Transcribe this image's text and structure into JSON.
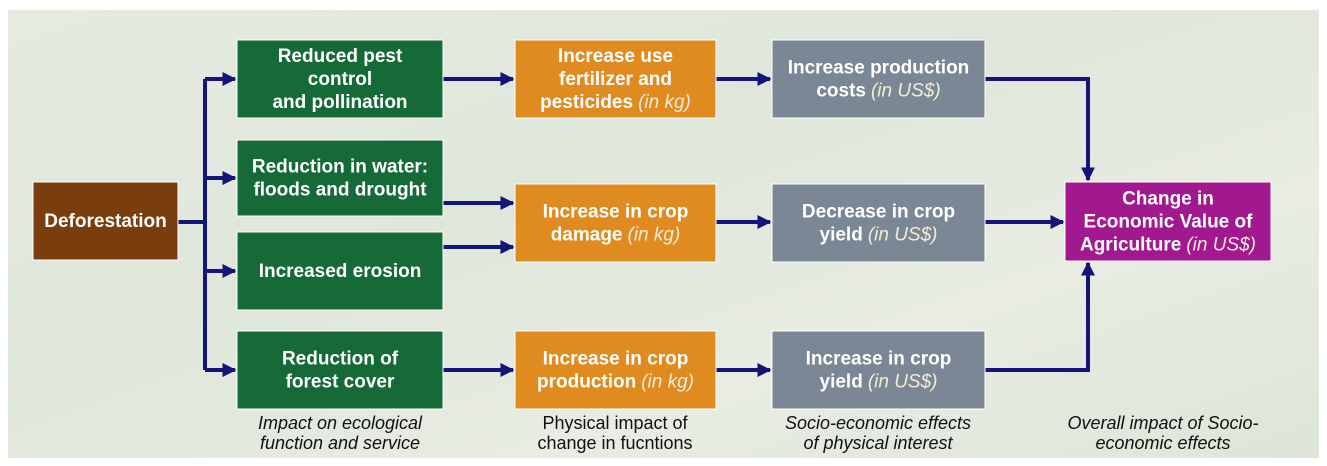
{
  "nodes": [
    {
      "lines": [
        "Deforestation"
      ]
    },
    {
      "lines": [
        "Reduced pest",
        "control",
        "and pollination"
      ]
    },
    {
      "lines": [
        "Reduction in water:",
        "floods and drought"
      ]
    },
    {
      "lines": [
        "Increased erosion"
      ]
    },
    {
      "lines": [
        "Reduction of",
        "forest cover"
      ]
    },
    {
      "lines": [
        "Increase use",
        "fertilizer and",
        "pesticides"
      ],
      "unit": "(in kg)"
    },
    {
      "lines": [
        "Increase in crop",
        "damage"
      ],
      "unit": "(in kg)"
    },
    {
      "lines": [
        "Increase in crop",
        "production"
      ],
      "unit": "(in kg)"
    },
    {
      "lines": [
        "Increase production",
        "costs"
      ],
      "unit": "(in US$)"
    },
    {
      "lines": [
        "Decrease in crop",
        "yield"
      ],
      "unit": "(in US$)"
    },
    {
      "lines": [
        "Increase in crop",
        "yield"
      ],
      "unit": "(in US$)"
    },
    {
      "lines": [
        "Change in",
        "Economic Value of",
        "Agriculture"
      ],
      "unit": "(in US$)"
    }
  ],
  "captions": [
    {
      "lines": [
        "Impact on ecological",
        "function and service"
      ]
    },
    {
      "lines": [
        "Physical impact of",
        "change in fucntions"
      ]
    },
    {
      "lines": [
        "Socio-economic effects",
        "of physical interest"
      ]
    },
    {
      "lines": [
        "Overall impact of Socio-",
        "economic effects"
      ]
    }
  ]
}
